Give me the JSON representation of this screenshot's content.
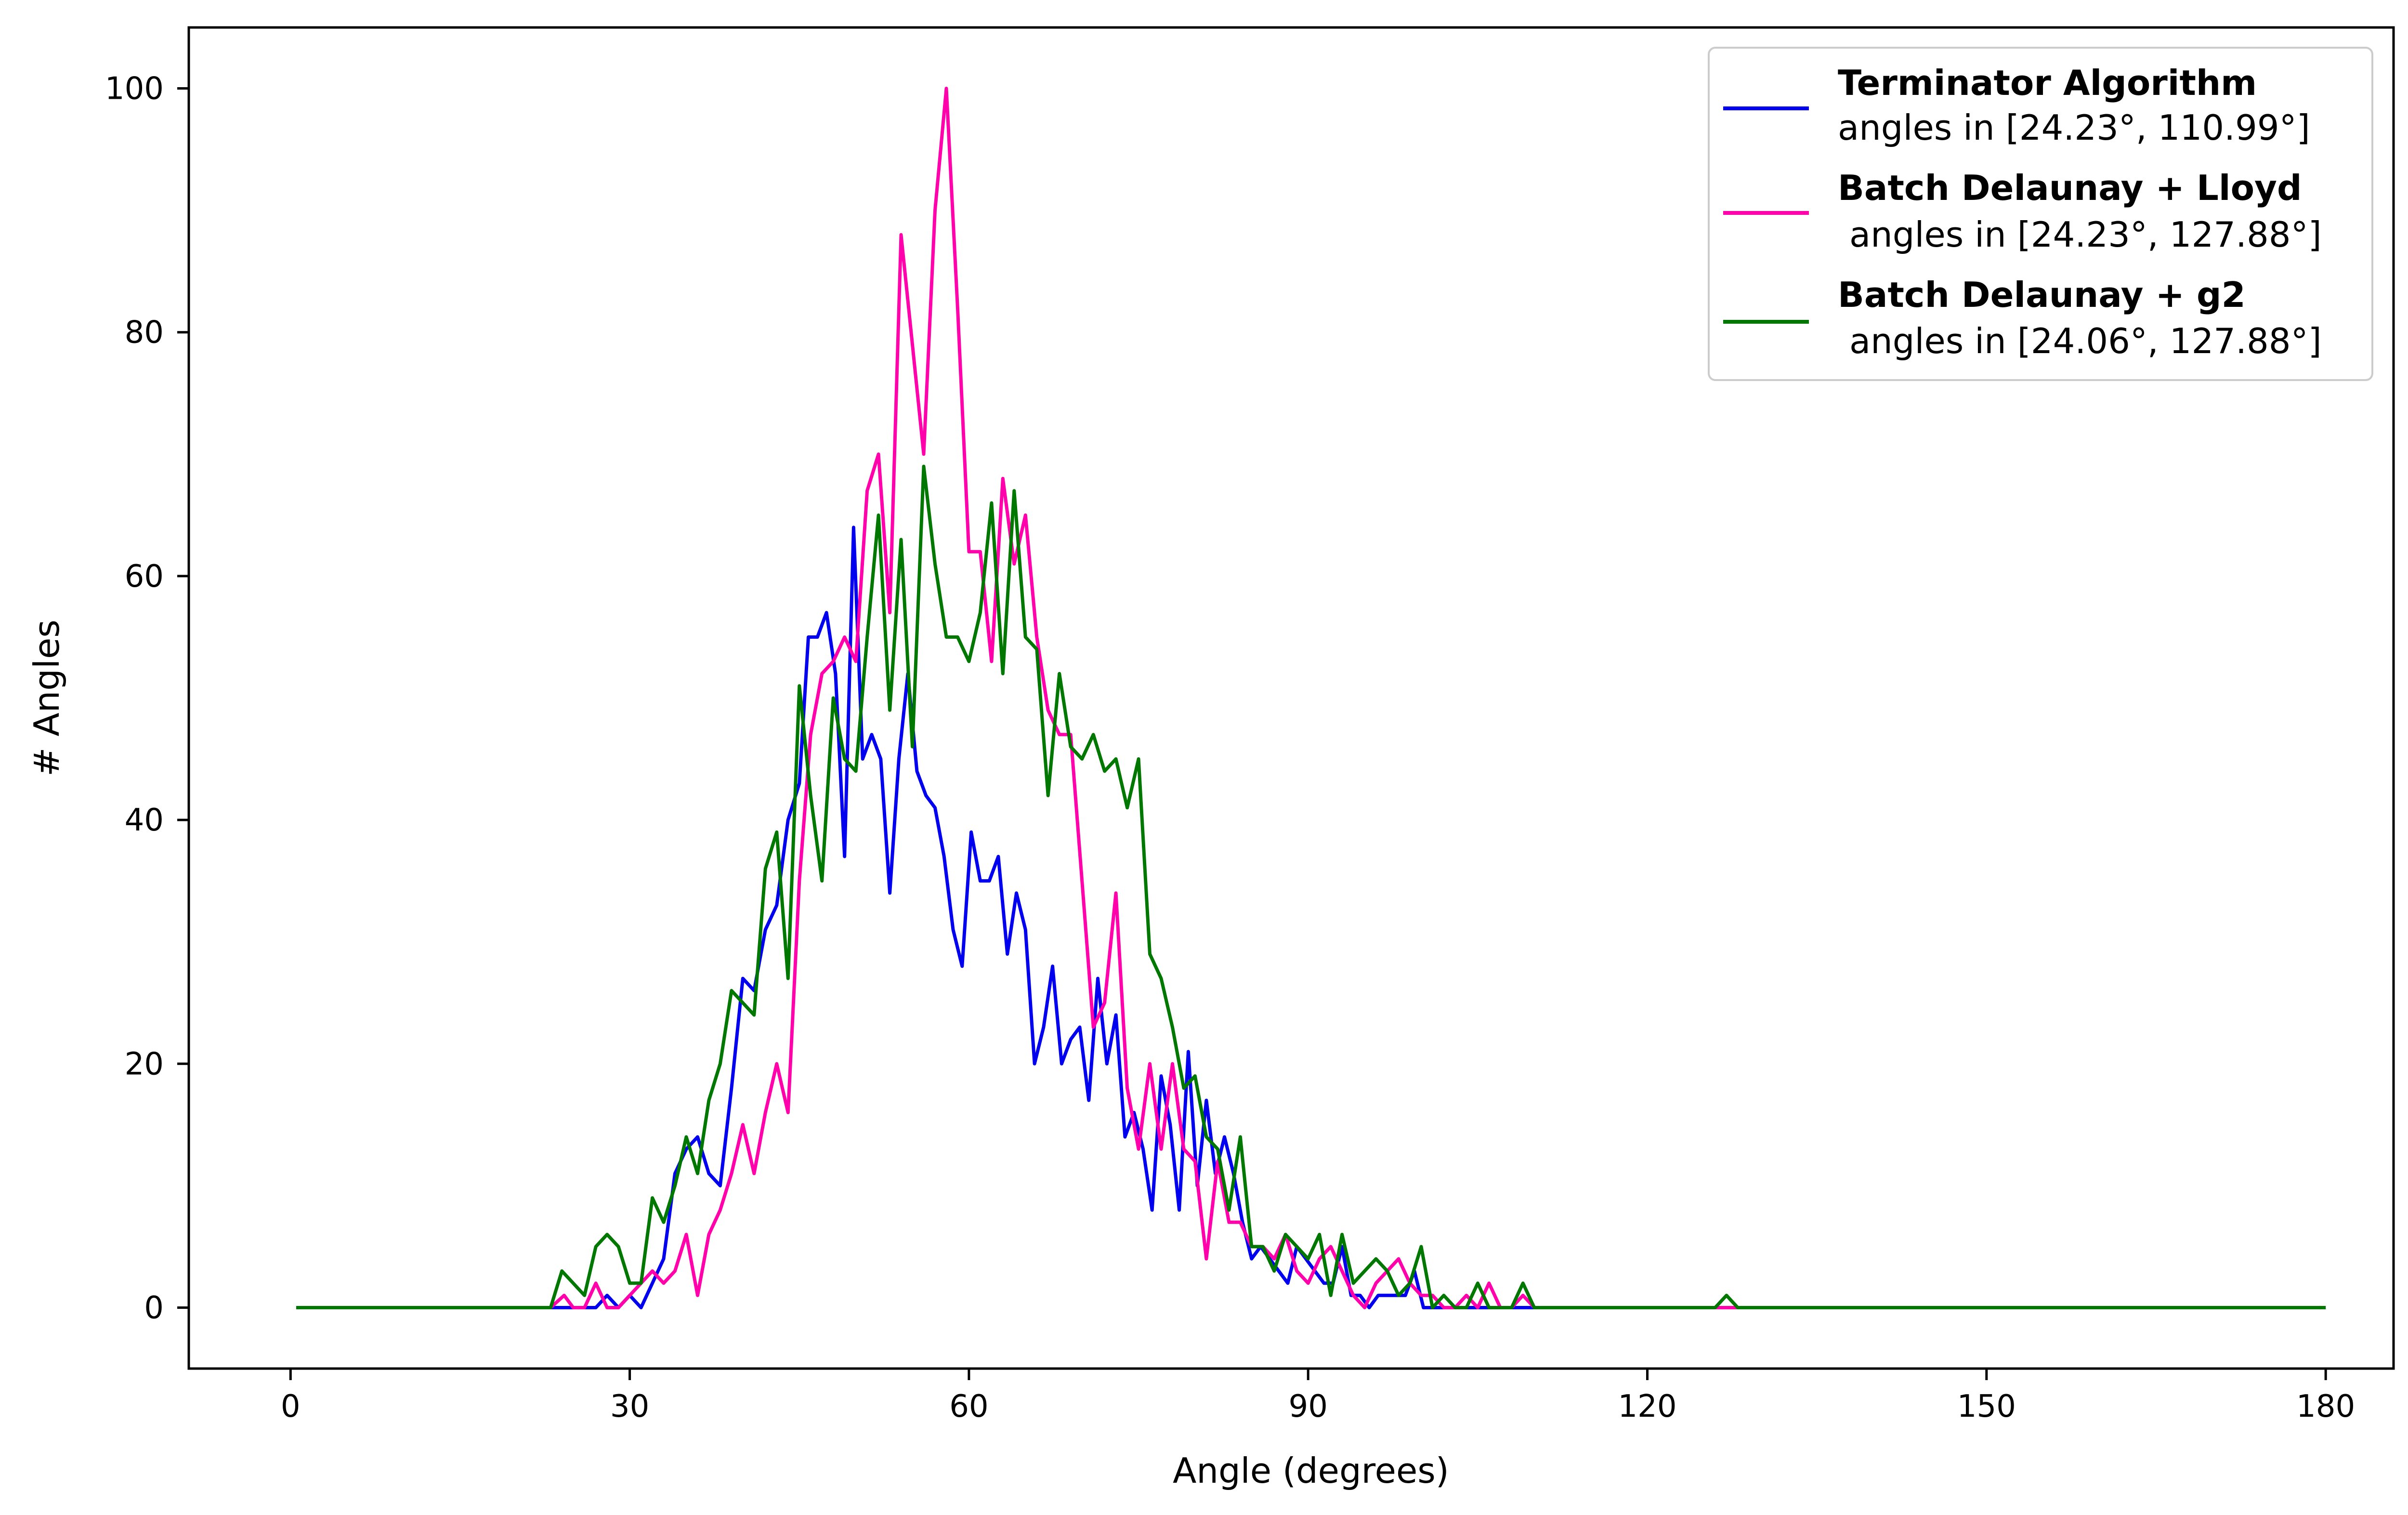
{
  "chart_data": {
    "type": "line",
    "title": "",
    "xlabel": "Angle (degrees)",
    "ylabel": "# Angles",
    "xlim": [
      -9,
      186
    ],
    "ylim": [
      -5,
      105
    ],
    "x_ticks": [
      0,
      30,
      60,
      90,
      120,
      150,
      180
    ],
    "y_ticks": [
      0,
      20,
      40,
      60,
      80,
      100
    ],
    "x_tick_labels": [
      "0",
      "30",
      "60",
      "90",
      "120",
      "150",
      "180"
    ],
    "y_tick_labels": [
      "0",
      "20",
      "40",
      "60",
      "80",
      "100"
    ],
    "grid": false,
    "legend_position": "top-right",
    "series": [
      {
        "name": "Terminator Algorithm",
        "legend_subtitle": "angles in [24.23°, 110.99°]",
        "color": "#0000ee",
        "points": [
          [
            0.5,
            0
          ],
          [
            23,
            0
          ],
          [
            25,
            0
          ],
          [
            26,
            0
          ],
          [
            27,
            0
          ],
          [
            28,
            1
          ],
          [
            29,
            0
          ],
          [
            30,
            1
          ],
          [
            31,
            0
          ],
          [
            32,
            2
          ],
          [
            33,
            4
          ],
          [
            34,
            11
          ],
          [
            35,
            13
          ],
          [
            36,
            14
          ],
          [
            37,
            11
          ],
          [
            38,
            10
          ],
          [
            39,
            18
          ],
          [
            40,
            27
          ],
          [
            41,
            26
          ],
          [
            42,
            31
          ],
          [
            43,
            33
          ],
          [
            44,
            40
          ],
          [
            45,
            43
          ],
          [
            45.8,
            55
          ],
          [
            46.6,
            55
          ],
          [
            47.4,
            57
          ],
          [
            48.2,
            52
          ],
          [
            49,
            37
          ],
          [
            49.8,
            64
          ],
          [
            50.6,
            45
          ],
          [
            51.4,
            47
          ],
          [
            52.2,
            45
          ],
          [
            53,
            34
          ],
          [
            53.8,
            45
          ],
          [
            54.6,
            52
          ],
          [
            55.4,
            44
          ],
          [
            56.2,
            42
          ],
          [
            57,
            41
          ],
          [
            57.8,
            37
          ],
          [
            58.6,
            31
          ],
          [
            59.4,
            28
          ],
          [
            60.2,
            39
          ],
          [
            61,
            35
          ],
          [
            61.8,
            35
          ],
          [
            62.6,
            37
          ],
          [
            63.4,
            29
          ],
          [
            64.2,
            34
          ],
          [
            65,
            31
          ],
          [
            65.8,
            20
          ],
          [
            66.6,
            23
          ],
          [
            67.4,
            28
          ],
          [
            68.2,
            20
          ],
          [
            69,
            22
          ],
          [
            69.8,
            23
          ],
          [
            70.6,
            17
          ],
          [
            71.4,
            27
          ],
          [
            72.2,
            20
          ],
          [
            73,
            24
          ],
          [
            73.8,
            14
          ],
          [
            74.6,
            16
          ],
          [
            75.4,
            13
          ],
          [
            76.2,
            8
          ],
          [
            77,
            19
          ],
          [
            77.8,
            15
          ],
          [
            78.6,
            8
          ],
          [
            79.4,
            21
          ],
          [
            80.2,
            10
          ],
          [
            81,
            17
          ],
          [
            81.8,
            11
          ],
          [
            82.6,
            14
          ],
          [
            83.4,
            11
          ],
          [
            84.2,
            7
          ],
          [
            85,
            4
          ],
          [
            85.8,
            5
          ],
          [
            86.6,
            4
          ],
          [
            87.4,
            3
          ],
          [
            88.2,
            2
          ],
          [
            89,
            5
          ],
          [
            89.8,
            4
          ],
          [
            90.6,
            3
          ],
          [
            91.4,
            2
          ],
          [
            92.2,
            2
          ],
          [
            93,
            5
          ],
          [
            93.8,
            1
          ],
          [
            94.6,
            1
          ],
          [
            95.4,
            0
          ],
          [
            96.2,
            1
          ],
          [
            97,
            1
          ],
          [
            97.8,
            1
          ],
          [
            98.6,
            1
          ],
          [
            99.4,
            3
          ],
          [
            100.2,
            0
          ],
          [
            101,
            0
          ],
          [
            110.99,
            0
          ],
          [
            180,
            0
          ]
        ]
      },
      {
        "name": "Batch Delaunay + Lloyd",
        "legend_subtitle": "angles in [24.23°, 127.88°]",
        "color": "#ff00aa",
        "points": [
          [
            0.5,
            0
          ],
          [
            23,
            0
          ],
          [
            24.2,
            1
          ],
          [
            25,
            0
          ],
          [
            26,
            0
          ],
          [
            27,
            2
          ],
          [
            28,
            0
          ],
          [
            29,
            0
          ],
          [
            30,
            1
          ],
          [
            31,
            2
          ],
          [
            32,
            3
          ],
          [
            33,
            2
          ],
          [
            34,
            3
          ],
          [
            35,
            6
          ],
          [
            36,
            1
          ],
          [
            37,
            6
          ],
          [
            38,
            8
          ],
          [
            39,
            11
          ],
          [
            40,
            15
          ],
          [
            41,
            11
          ],
          [
            42,
            16
          ],
          [
            43,
            20
          ],
          [
            44,
            16
          ],
          [
            45,
            35
          ],
          [
            46,
            47
          ],
          [
            47,
            52
          ],
          [
            48,
            53
          ],
          [
            49,
            55
          ],
          [
            50,
            53
          ],
          [
            51,
            67
          ],
          [
            52,
            70
          ],
          [
            53,
            57
          ],
          [
            54,
            88
          ],
          [
            55,
            79
          ],
          [
            56,
            70
          ],
          [
            57,
            90
          ],
          [
            58,
            100
          ],
          [
            59,
            82
          ],
          [
            60,
            62
          ],
          [
            61,
            62
          ],
          [
            62,
            53
          ],
          [
            63,
            68
          ],
          [
            64,
            61
          ],
          [
            65,
            65
          ],
          [
            66,
            55
          ],
          [
            67,
            49
          ],
          [
            68,
            47
          ],
          [
            69,
            47
          ],
          [
            70,
            35
          ],
          [
            71,
            23
          ],
          [
            72,
            25
          ],
          [
            73,
            34
          ],
          [
            74,
            18
          ],
          [
            75,
            13
          ],
          [
            76,
            20
          ],
          [
            77,
            13
          ],
          [
            78,
            20
          ],
          [
            79,
            13
          ],
          [
            80,
            12
          ],
          [
            81,
            4
          ],
          [
            82,
            12
          ],
          [
            83,
            7
          ],
          [
            84,
            7
          ],
          [
            85,
            5
          ],
          [
            86,
            5
          ],
          [
            87,
            4
          ],
          [
            88,
            6
          ],
          [
            89,
            3
          ],
          [
            90,
            2
          ],
          [
            91,
            4
          ],
          [
            92,
            5
          ],
          [
            93,
            3
          ],
          [
            94,
            1
          ],
          [
            95,
            0
          ],
          [
            96,
            2
          ],
          [
            97,
            3
          ],
          [
            98,
            4
          ],
          [
            99,
            2
          ],
          [
            100,
            1
          ],
          [
            101,
            1
          ],
          [
            102,
            0
          ],
          [
            103,
            0
          ],
          [
            104,
            1
          ],
          [
            105,
            0
          ],
          [
            106,
            2
          ],
          [
            107,
            0
          ],
          [
            108,
            0
          ],
          [
            109,
            1
          ],
          [
            110,
            0
          ],
          [
            127.88,
            0
          ],
          [
            180,
            0
          ]
        ]
      },
      {
        "name": "Batch Delaunay + g2",
        "legend_subtitle": "angles in [24.06°, 127.88°]",
        "color": "#007700",
        "points": [
          [
            0.5,
            0
          ],
          [
            23,
            0
          ],
          [
            24,
            3
          ],
          [
            25,
            2
          ],
          [
            26,
            1
          ],
          [
            27,
            5
          ],
          [
            28,
            6
          ],
          [
            29,
            5
          ],
          [
            30,
            2
          ],
          [
            31,
            2
          ],
          [
            32,
            9
          ],
          [
            33,
            7
          ],
          [
            34,
            10
          ],
          [
            35,
            14
          ],
          [
            36,
            11
          ],
          [
            37,
            17
          ],
          [
            38,
            20
          ],
          [
            39,
            26
          ],
          [
            40,
            25
          ],
          [
            41,
            24
          ],
          [
            42,
            36
          ],
          [
            43,
            39
          ],
          [
            44,
            27
          ],
          [
            45,
            51
          ],
          [
            46,
            42
          ],
          [
            47,
            35
          ],
          [
            48,
            50
          ],
          [
            49,
            45
          ],
          [
            50,
            44
          ],
          [
            51,
            55
          ],
          [
            52,
            65
          ],
          [
            53,
            49
          ],
          [
            54,
            63
          ],
          [
            55,
            46
          ],
          [
            56,
            69
          ],
          [
            57,
            61
          ],
          [
            58,
            55
          ],
          [
            59,
            55
          ],
          [
            60,
            53
          ],
          [
            61,
            57
          ],
          [
            62,
            66
          ],
          [
            63,
            52
          ],
          [
            64,
            67
          ],
          [
            65,
            55
          ],
          [
            66,
            54
          ],
          [
            67,
            42
          ],
          [
            68,
            52
          ],
          [
            69,
            46
          ],
          [
            70,
            45
          ],
          [
            71,
            47
          ],
          [
            72,
            44
          ],
          [
            73,
            45
          ],
          [
            74,
            41
          ],
          [
            75,
            45
          ],
          [
            76,
            29
          ],
          [
            77,
            27
          ],
          [
            78,
            23
          ],
          [
            79,
            18
          ],
          [
            80,
            19
          ],
          [
            81,
            14
          ],
          [
            82,
            13
          ],
          [
            83,
            8
          ],
          [
            84,
            14
          ],
          [
            85,
            5
          ],
          [
            86,
            5
          ],
          [
            87,
            3
          ],
          [
            88,
            6
          ],
          [
            89,
            5
          ],
          [
            90,
            4
          ],
          [
            91,
            6
          ],
          [
            92,
            1
          ],
          [
            93,
            6
          ],
          [
            94,
            2
          ],
          [
            95,
            3
          ],
          [
            96,
            4
          ],
          [
            97,
            3
          ],
          [
            98,
            1
          ],
          [
            99,
            2
          ],
          [
            100,
            5
          ],
          [
            101,
            0
          ],
          [
            102,
            1
          ],
          [
            103,
            0
          ],
          [
            104,
            0
          ],
          [
            105,
            2
          ],
          [
            106,
            0
          ],
          [
            107,
            0
          ],
          [
            108,
            0
          ],
          [
            109,
            2
          ],
          [
            110,
            0
          ],
          [
            126,
            0
          ],
          [
            127,
            1
          ],
          [
            128,
            0
          ],
          [
            180,
            0
          ]
        ]
      }
    ]
  }
}
